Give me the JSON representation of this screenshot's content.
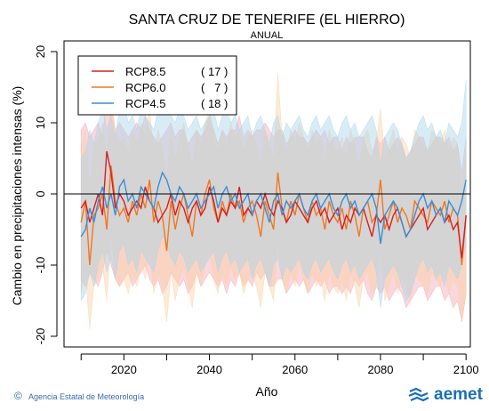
{
  "chart_data": {
    "type": "line",
    "title": "SANTA CRUZ DE TENERIFE (EL HIERRO)",
    "subtitle": "ANUAL",
    "xlabel": "Año",
    "ylabel": "Cambio en precipitaciones intensas (%)",
    "xlim": [
      2006,
      2101
    ],
    "ylim": [
      -21.5,
      21.5
    ],
    "xticks": [
      2020,
      2040,
      2060,
      2080,
      2100
    ],
    "yticks": [
      -20,
      -10,
      0,
      10,
      20
    ],
    "reference_line": 0,
    "legend_position": "top-left",
    "x": [
      2010,
      2011,
      2012,
      2013,
      2014,
      2015,
      2016,
      2017,
      2018,
      2019,
      2020,
      2021,
      2022,
      2023,
      2024,
      2025,
      2026,
      2027,
      2028,
      2029,
      2030,
      2031,
      2032,
      2033,
      2034,
      2035,
      2036,
      2037,
      2038,
      2039,
      2040,
      2041,
      2042,
      2043,
      2044,
      2045,
      2046,
      2047,
      2048,
      2049,
      2050,
      2051,
      2052,
      2053,
      2054,
      2055,
      2056,
      2057,
      2058,
      2059,
      2060,
      2061,
      2062,
      2063,
      2064,
      2065,
      2066,
      2067,
      2068,
      2069,
      2070,
      2071,
      2072,
      2073,
      2074,
      2075,
      2076,
      2077,
      2078,
      2079,
      2080,
      2081,
      2082,
      2083,
      2084,
      2085,
      2086,
      2087,
      2088,
      2089,
      2090,
      2091,
      2092,
      2093,
      2094,
      2095,
      2096,
      2097,
      2098,
      2099,
      2100
    ],
    "series": [
      {
        "name": "RCP8.5",
        "count": "( 17 )",
        "color": "#d62020",
        "band_color": "#f4a6b4",
        "values": [
          -2,
          -1,
          -4,
          -2,
          0,
          -3,
          6,
          3,
          -2,
          0,
          -1,
          -3,
          -2,
          -1,
          -2,
          1,
          -1,
          -2,
          -4,
          -3,
          -2,
          0,
          -3,
          -1,
          -2,
          -4,
          -2,
          -1,
          -3,
          -2,
          1,
          -1,
          -4,
          -2,
          -3,
          -1,
          -2,
          1,
          -3,
          -2,
          -3,
          -1,
          -2,
          0,
          -2,
          -3,
          -1,
          -2,
          -4,
          -3,
          -1,
          -2,
          -3,
          -4,
          -2,
          -1,
          -3,
          -2,
          -4,
          -3,
          -2,
          -5,
          -3,
          -4,
          -2,
          -3,
          -2,
          -4,
          -6,
          -3,
          -4,
          -3,
          -5,
          -3,
          -2,
          -4,
          -6,
          -5,
          -4,
          -3,
          -2,
          -5,
          -4,
          -3,
          -2,
          -4,
          -3,
          -5,
          -4,
          -9,
          -3
        ],
        "low": [
          -12,
          -13,
          -11,
          -12,
          -13,
          -11,
          -8,
          -10,
          -12,
          -13,
          -12,
          -11,
          -13,
          -12,
          -11,
          -10,
          -12,
          -13,
          -12,
          -14,
          -13,
          -11,
          -12,
          -13,
          -12,
          -14,
          -13,
          -11,
          -13,
          -12,
          -11,
          -12,
          -13,
          -12,
          -14,
          -12,
          -13,
          -11,
          -13,
          -12,
          -13,
          -11,
          -12,
          -11,
          -13,
          -13,
          -12,
          -12,
          -14,
          -13,
          -12,
          -13,
          -12,
          -14,
          -13,
          -12,
          -13,
          -12,
          -14,
          -13,
          -13,
          -14,
          -13,
          -14,
          -12,
          -13,
          -12,
          -14,
          -15,
          -13,
          -14,
          -13,
          -15,
          -14,
          -13,
          -14,
          -16,
          -15,
          -14,
          -13,
          -13,
          -15,
          -14,
          -13,
          -13,
          -15,
          -14,
          -16,
          -15,
          -18,
          -14
        ],
        "high": [
          9,
          10,
          8,
          9,
          10,
          8,
          14,
          12,
          9,
          10,
          9,
          8,
          9,
          10,
          9,
          11,
          9,
          8,
          7,
          8,
          9,
          10,
          8,
          9,
          9,
          7,
          8,
          9,
          8,
          9,
          11,
          9,
          7,
          9,
          8,
          9,
          9,
          11,
          8,
          9,
          8,
          9,
          9,
          10,
          9,
          8,
          9,
          9,
          7,
          8,
          9,
          8,
          8,
          7,
          8,
          9,
          8,
          9,
          7,
          8,
          8,
          6,
          8,
          7,
          8,
          8,
          8,
          6,
          5,
          8,
          7,
          8,
          6,
          7,
          8,
          7,
          5,
          6,
          7,
          8,
          8,
          6,
          7,
          8,
          8,
          7,
          8,
          6,
          7,
          3,
          8
        ]
      },
      {
        "name": "RCP6.0",
        "count": "(   7 )",
        "color": "#f07820",
        "band_color": "#fbd0a4",
        "values": [
          -4,
          -1,
          -10,
          -3,
          -2,
          0,
          -5,
          4,
          -1,
          -3,
          -2,
          -4,
          -1,
          -3,
          0,
          -2,
          2,
          -4,
          -1,
          -3,
          -8,
          -1,
          -5,
          -2,
          0,
          -3,
          -6,
          -1,
          -3,
          0,
          2,
          -2,
          -4,
          -1,
          -3,
          0,
          -2,
          -1,
          -4,
          -2,
          -1,
          -3,
          -6,
          -1,
          -3,
          -5,
          3,
          -2,
          -4,
          -1,
          -3,
          0,
          -2,
          -4,
          -1,
          -3,
          -2,
          -5,
          -1,
          -3,
          -4,
          -2,
          -5,
          -1,
          -3,
          -6,
          -2,
          -1,
          -4,
          -3,
          2,
          -5,
          -3,
          -1,
          -4,
          -2,
          -3,
          -5,
          -1,
          -2,
          -3,
          -4,
          -1,
          -2,
          -3,
          -1,
          -4,
          -2,
          -3,
          -10,
          -3
        ],
        "low": [
          -14,
          -11,
          -19,
          -13,
          -12,
          -10,
          -15,
          -6,
          -11,
          -13,
          -12,
          -14,
          -11,
          -13,
          -10,
          -12,
          -8,
          -14,
          -11,
          -13,
          -18,
          -11,
          -15,
          -12,
          -10,
          -13,
          -16,
          -11,
          -13,
          -10,
          -8,
          -12,
          -14,
          -11,
          -13,
          -10,
          -12,
          -11,
          -14,
          -12,
          -11,
          -13,
          -16,
          -11,
          -13,
          -15,
          -7,
          -12,
          -14,
          -11,
          -13,
          -10,
          -12,
          -14,
          -11,
          -13,
          -12,
          -15,
          -11,
          -13,
          -14,
          -12,
          -15,
          -11,
          -13,
          -16,
          -12,
          -11,
          -14,
          -13,
          -8,
          -15,
          -13,
          -11,
          -14,
          -12,
          -13,
          -15,
          -11,
          -12,
          -13,
          -14,
          -11,
          -12,
          -13,
          -11,
          -14,
          -12,
          -13,
          -18,
          -14
        ],
        "high": [
          6,
          9,
          1,
          7,
          8,
          10,
          5,
          14,
          9,
          7,
          8,
          6,
          9,
          7,
          10,
          8,
          12,
          6,
          9,
          7,
          2,
          9,
          5,
          8,
          10,
          7,
          4,
          9,
          7,
          10,
          12,
          8,
          6,
          9,
          7,
          10,
          8,
          9,
          6,
          8,
          9,
          7,
          4,
          9,
          7,
          5,
          17,
          8,
          6,
          9,
          7,
          10,
          8,
          6,
          9,
          7,
          8,
          5,
          9,
          7,
          6,
          8,
          5,
          9,
          7,
          4,
          8,
          9,
          6,
          7,
          12,
          5,
          7,
          9,
          6,
          8,
          7,
          5,
          9,
          8,
          7,
          6,
          9,
          8,
          7,
          9,
          6,
          8,
          7,
          0,
          7
        ]
      },
      {
        "name": "RCP4.5",
        "count": "( 18 )",
        "color": "#3a8ed8",
        "band_color": "#a8d4ec",
        "values": [
          -6,
          -5,
          -2,
          -4,
          -1,
          1,
          -2,
          0,
          -3,
          1,
          2,
          -1,
          0,
          -2,
          1,
          0,
          -1,
          -2,
          1,
          3,
          2,
          0,
          -1,
          1,
          0,
          -2,
          -1,
          0,
          -2,
          -1,
          0,
          1,
          -2,
          0,
          1,
          -1,
          0,
          -2,
          -1,
          0,
          -3,
          -1,
          0,
          -2,
          -4,
          -1,
          0,
          -3,
          -1,
          -2,
          -1,
          0,
          -2,
          -3,
          -1,
          0,
          -2,
          -1,
          0,
          -2,
          -3,
          -1,
          0,
          -2,
          -1,
          -3,
          -2,
          -1,
          0,
          -2,
          -7,
          -3,
          -2,
          -1,
          -2,
          -4,
          -6,
          -5,
          -3,
          -1,
          0,
          -2,
          -1,
          -3,
          -2,
          -4,
          -1,
          -2,
          -3,
          -1,
          2
        ],
        "low": [
          -15,
          -14,
          -11,
          -13,
          -10,
          -8,
          -11,
          -9,
          -12,
          -8,
          -7,
          -10,
          -9,
          -11,
          -8,
          -9,
          -10,
          -11,
          -8,
          -6,
          -7,
          -9,
          -10,
          -8,
          -9,
          -11,
          -10,
          -9,
          -11,
          -10,
          -9,
          -8,
          -11,
          -9,
          -8,
          -10,
          -9,
          -11,
          -10,
          -9,
          -12,
          -10,
          -9,
          -11,
          -13,
          -10,
          -9,
          -12,
          -10,
          -11,
          -10,
          -9,
          -11,
          -12,
          -10,
          -9,
          -11,
          -10,
          -9,
          -11,
          -12,
          -10,
          -9,
          -11,
          -10,
          -12,
          -11,
          -10,
          -9,
          -11,
          -16,
          -12,
          -11,
          -10,
          -11,
          -13,
          -15,
          -14,
          -12,
          -10,
          -9,
          -11,
          -10,
          -12,
          -11,
          -13,
          -10,
          -11,
          -12,
          -10,
          -7
        ],
        "high": [
          5,
          6,
          9,
          7,
          10,
          12,
          9,
          11,
          8,
          12,
          13,
          10,
          11,
          9,
          12,
          11,
          10,
          9,
          12,
          14,
          13,
          11,
          10,
          12,
          11,
          9,
          10,
          11,
          9,
          10,
          11,
          12,
          9,
          11,
          12,
          10,
          11,
          9,
          10,
          11,
          8,
          10,
          11,
          9,
          7,
          10,
          11,
          8,
          10,
          9,
          10,
          11,
          9,
          8,
          10,
          11,
          9,
          10,
          11,
          9,
          8,
          10,
          11,
          9,
          10,
          8,
          9,
          10,
          11,
          9,
          4,
          8,
          9,
          10,
          9,
          7,
          5,
          6,
          8,
          10,
          11,
          9,
          10,
          8,
          9,
          7,
          10,
          9,
          8,
          10,
          16
        ]
      }
    ]
  },
  "footer": {
    "copyright_symbol": "©",
    "credit": "Agencia Estatal de Meteorología",
    "logo_text": "aemet"
  }
}
